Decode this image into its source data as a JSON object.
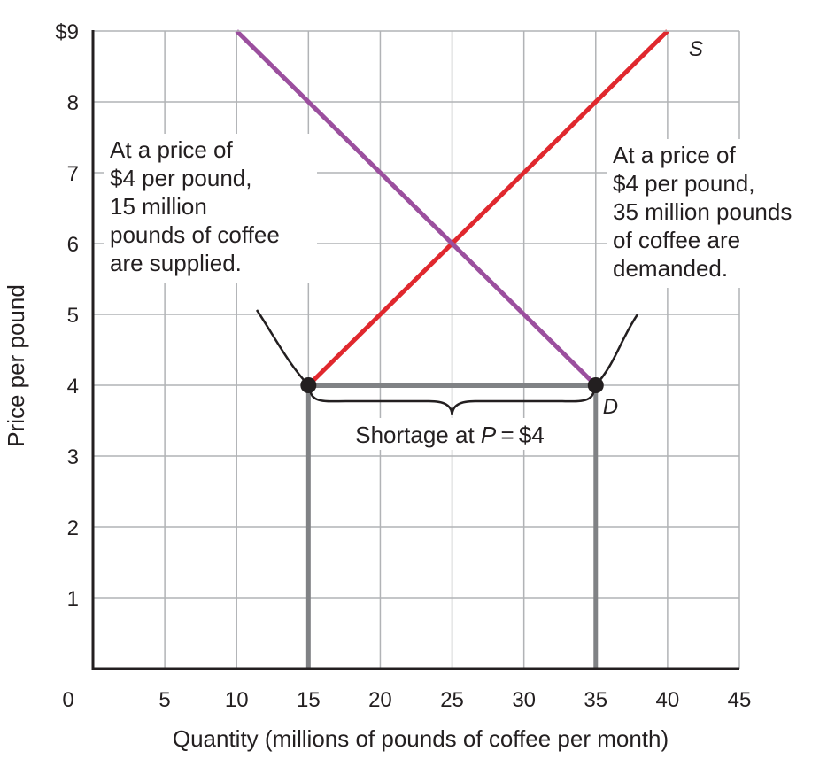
{
  "chart_data": {
    "type": "line",
    "title": "",
    "xlabel": "Quantity (millions of pounds of coffee per month)",
    "ylabel": "Price per pound",
    "xlim": [
      0,
      45
    ],
    "ylim": [
      0,
      9
    ],
    "x_ticks": [
      "0",
      "5",
      "10",
      "15",
      "20",
      "25",
      "30",
      "35",
      "40",
      "45"
    ],
    "y_ticks": [
      "1",
      "2",
      "3",
      "4",
      "5",
      "6",
      "7",
      "8",
      "$9"
    ],
    "grid": true,
    "series": [
      {
        "name": "S",
        "color": "#e0282e",
        "points": [
          [
            15,
            4
          ],
          [
            40,
            9
          ]
        ]
      },
      {
        "name": "D",
        "color": "#9b4f9e",
        "points": [
          [
            10,
            9
          ],
          [
            35,
            4
          ]
        ]
      }
    ],
    "shortage_segment": {
      "from": [
        15,
        4
      ],
      "to": [
        35,
        4
      ],
      "color": "#808285"
    },
    "points": [
      [
        15,
        4
      ],
      [
        35,
        4
      ]
    ],
    "annotations": {
      "left": [
        "At a price of",
        "$4 per pound,",
        "15 million",
        "pounds of coffee",
        "are supplied."
      ],
      "right": [
        "At a price of",
        "$4 per pound,",
        "35 million pounds",
        "of coffee are",
        "demanded."
      ],
      "shortage": {
        "prefix": "Shortage at ",
        "var": "P",
        "suffix": " = $4"
      }
    }
  }
}
